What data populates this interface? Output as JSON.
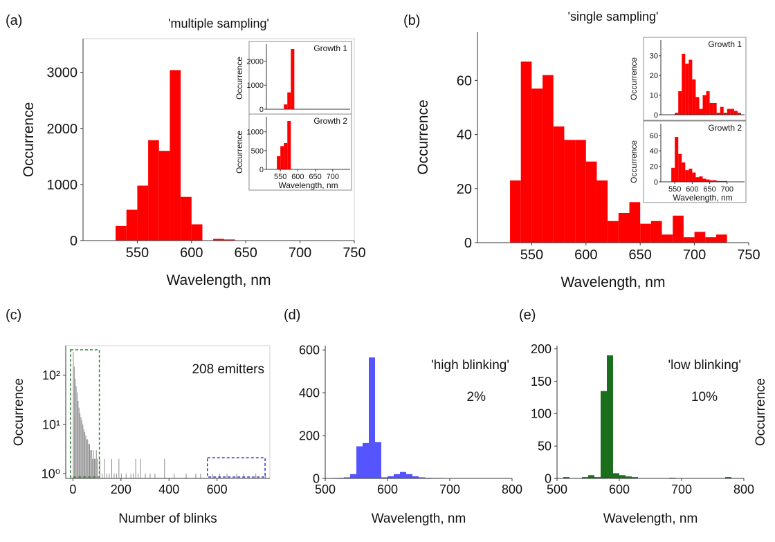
{
  "panel_labels": [
    "(a)",
    "(b)",
    "(c)",
    "(d)",
    "(e)"
  ],
  "chart_data": [
    {
      "type": "bar",
      "panel": "(a)",
      "title": "'multiple sampling'",
      "xlabel": "Wavelength, nm",
      "ylabel": "Occurrence",
      "xlim": [
        500,
        750
      ],
      "ylim": [
        0,
        3600
      ],
      "xticks": [
        550,
        600,
        650,
        700,
        750
      ],
      "yticks": [
        0,
        1000,
        2000,
        3000
      ],
      "bin_width": 10,
      "x": [
        530,
        540,
        550,
        560,
        570,
        580,
        590,
        600,
        610,
        620,
        630,
        640
      ],
      "values": [
        260,
        550,
        980,
        1790,
        1600,
        3040,
        780,
        290,
        5,
        30,
        20,
        5
      ],
      "color": "#ff0000",
      "insets": [
        {
          "label": "Growth 1",
          "ylabel": "Occurrence",
          "ylim": [
            0,
            2700
          ],
          "yticks": [
            0,
            1000,
            2000
          ],
          "xlim": [
            510,
            750
          ],
          "bin_width": 10,
          "x": [
            560,
            570,
            580
          ],
          "values": [
            200,
            700,
            2500
          ],
          "color": "#ff0000"
        },
        {
          "label": "Growth 2",
          "ylabel": "Occurrence",
          "xlabel": "Wavelength, nm",
          "ylim": [
            0,
            1400
          ],
          "yticks": [
            0,
            500,
            1000
          ],
          "xlim": [
            510,
            750
          ],
          "xticks": [
            550,
            600,
            650,
            700
          ],
          "bin_width": 10,
          "x": [
            540,
            550,
            560,
            570
          ],
          "values": [
            350,
            620,
            700,
            1290
          ],
          "color": "#ff0000"
        }
      ]
    },
    {
      "type": "bar",
      "panel": "(b)",
      "title": "'single sampling'",
      "xlabel": "Wavelength, nm",
      "ylabel": "Occurrence",
      "xlim": [
        500,
        750
      ],
      "ylim": [
        0,
        78
      ],
      "xticks": [
        550,
        600,
        650,
        700,
        750
      ],
      "yticks": [
        0,
        20,
        40,
        60
      ],
      "bin_width": 10,
      "x": [
        530,
        540,
        550,
        560,
        570,
        580,
        590,
        600,
        610,
        620,
        630,
        640,
        650,
        660,
        670,
        680,
        690,
        700,
        710,
        720
      ],
      "values": [
        23,
        67,
        57,
        62,
        43,
        38,
        38,
        30,
        23,
        8,
        11,
        15,
        7,
        8,
        3,
        10,
        2,
        4,
        2,
        3
      ],
      "color": "#ff0000",
      "insets": [
        {
          "label": "Growth 1",
          "ylabel": "Occurrence",
          "ylim": [
            0,
            38
          ],
          "yticks": [
            0,
            10,
            20,
            30
          ],
          "xlim": [
            510,
            750
          ],
          "bin_width": 10,
          "x": [
            550,
            560,
            570,
            580,
            590,
            600,
            610,
            620,
            630,
            640,
            650,
            660,
            670,
            680,
            690,
            700,
            710,
            720,
            730
          ],
          "values": [
            1,
            12,
            31,
            26,
            28,
            18,
            9,
            3,
            10,
            12,
            6,
            6,
            1,
            4,
            1,
            3,
            3,
            2,
            1
          ],
          "color": "#ff0000"
        },
        {
          "label": "Growth 2",
          "ylabel": "Occurrence",
          "xlabel": "Wavelength, nm",
          "ylim": [
            0,
            75
          ],
          "yticks": [
            0,
            20,
            40,
            60
          ],
          "xlim": [
            510,
            750
          ],
          "xticks": [
            550,
            600,
            650,
            700
          ],
          "bin_width": 10,
          "x": [
            540,
            550,
            560,
            570,
            580,
            590,
            600,
            610,
            620,
            630,
            640,
            650,
            660,
            670,
            680,
            690
          ],
          "values": [
            18,
            58,
            36,
            25,
            15,
            17,
            12,
            6,
            7,
            4,
            3,
            2,
            2,
            1,
            1,
            1
          ],
          "color": "#ff0000"
        }
      ]
    },
    {
      "type": "bar",
      "panel": "(c)",
      "title": "",
      "annotation": "208 emitters",
      "xlabel": "Number of blinks",
      "ylabel": "Occurrence",
      "yscale": "log",
      "xlim": [
        -30,
        820
      ],
      "ylim": [
        0.8,
        400
      ],
      "xticks": [
        0,
        200,
        400,
        600
      ],
      "yticks": [
        1,
        10,
        100
      ],
      "ytick_labels": [
        "10⁰",
        "10¹",
        "10²"
      ],
      "bin_width": 4,
      "x": [
        0,
        4,
        8,
        12,
        16,
        20,
        24,
        28,
        32,
        36,
        40,
        44,
        48,
        52,
        56,
        60,
        64,
        68,
        72,
        76,
        80,
        84,
        88,
        92,
        96,
        100,
        110,
        120,
        130,
        140,
        150,
        160,
        170,
        180,
        190,
        200,
        220,
        240,
        250,
        260,
        270,
        280,
        300,
        320,
        340,
        380,
        420,
        470,
        510,
        530,
        580,
        610,
        640,
        680,
        710,
        760,
        800
      ],
      "values": [
        300,
        150,
        85,
        60,
        45,
        30,
        22,
        17,
        14,
        12,
        10,
        8,
        7,
        6,
        5,
        5,
        4,
        4,
        3,
        3,
        2,
        3,
        2,
        2,
        3,
        2,
        2,
        1,
        2,
        1,
        1,
        2,
        1,
        1,
        2,
        1,
        1,
        1,
        1,
        2,
        1,
        2,
        1,
        1,
        1,
        2,
        1,
        1,
        1,
        1,
        1,
        1,
        1,
        1,
        1,
        1,
        1
      ],
      "color": "#8a8a8a",
      "highlight_boxes": [
        {
          "range": [
            -10,
            110
          ],
          "color": "#2e7d32"
        },
        {
          "range": [
            560,
            800
          ],
          "color": "#3333cc"
        }
      ]
    },
    {
      "type": "bar",
      "panel": "(d)",
      "title": "'high blinking'",
      "annotation": "2%",
      "xlabel": "Wavelength, nm",
      "ylabel": "",
      "xlim": [
        500,
        800
      ],
      "ylim": [
        0,
        620
      ],
      "xticks": [
        500,
        600,
        700,
        800
      ],
      "yticks": [
        0,
        200,
        400,
        600
      ],
      "bin_width": 10,
      "x": [
        510,
        520,
        530,
        540,
        550,
        560,
        570,
        580,
        590,
        600,
        610,
        620,
        630,
        640,
        650,
        660,
        670,
        680,
        690,
        700
      ],
      "values": [
        2,
        3,
        5,
        20,
        150,
        165,
        565,
        170,
        5,
        10,
        20,
        30,
        20,
        10,
        5,
        3,
        2,
        2,
        1,
        1
      ],
      "color": "#5555ff"
    },
    {
      "type": "bar",
      "panel": "(e)",
      "title": "'low blinking'",
      "annotation": "10%",
      "xlabel": "Wavelength, nm",
      "ylabel": "Occurrence",
      "xlim": [
        500,
        800
      ],
      "ylim": [
        0,
        205
      ],
      "xticks": [
        500,
        600,
        700,
        800
      ],
      "yticks": [
        0,
        50,
        100,
        150,
        200
      ],
      "bin_width": 10,
      "x": [
        510,
        540,
        550,
        560,
        570,
        580,
        590,
        600,
        610,
        620,
        680,
        770
      ],
      "values": [
        2,
        2,
        5,
        2,
        135,
        190,
        8,
        5,
        3,
        2,
        1,
        2
      ],
      "color": "#1b6e1b"
    }
  ]
}
